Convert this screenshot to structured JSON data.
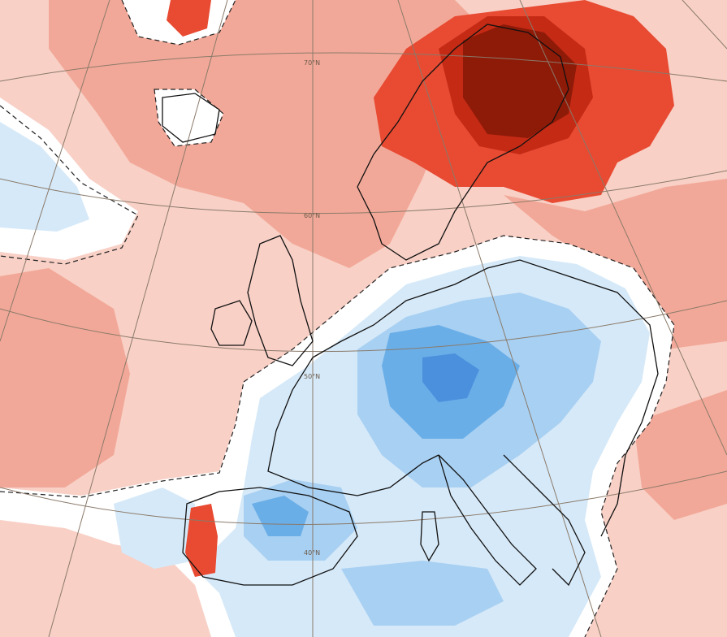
{
  "map": {
    "type": "temperature-anomaly",
    "projection": "polar-stereographic",
    "colors": {
      "sea_white": "#ffffff",
      "warm_1": "#f8d0c6",
      "warm_2": "#f2a898",
      "warm_3": "#e84a32",
      "warm_4": "#c42a14",
      "warm_5": "#8e1a08",
      "cold_1": "#d6e9f8",
      "cold_2": "#a8d0f2",
      "cold_3": "#6aaee8",
      "cold_4": "#4a90dc",
      "coast": "#111111",
      "graticule": "#8a7a6a"
    },
    "graticule_labels": [
      "70°N",
      "60°N",
      "50°N",
      "40°N"
    ]
  }
}
